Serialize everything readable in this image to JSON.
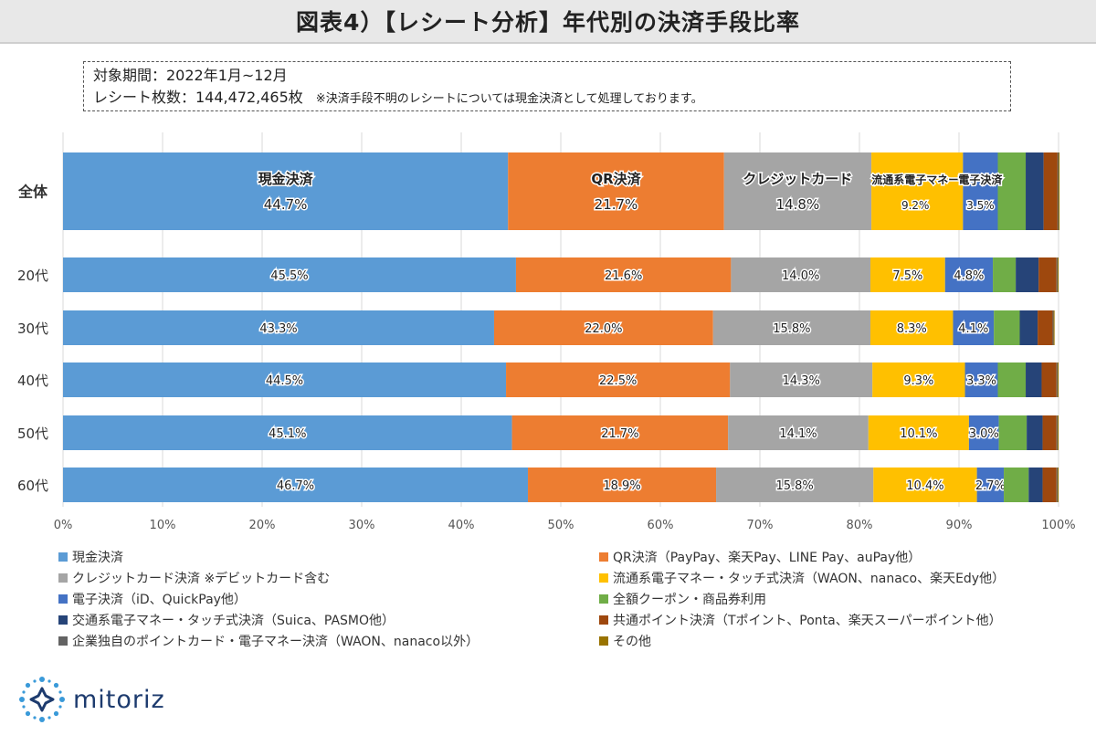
{
  "header": {
    "title": "図表4）【レシート分析】年代別の決済手段比率"
  },
  "info": {
    "period": "対象期間：2022年1月~12月",
    "receipts": "レシート枚数：144,472,465枚",
    "note": "※決済手段不明のレシートについては現金決済として処理しております。"
  },
  "logo": {
    "text": "mitoriz"
  },
  "colors": {
    "cash": "#5b9bd5",
    "qr": "#ed7d31",
    "credit": "#a5a5a5",
    "ryutsu": "#ffc000",
    "denshi": "#4472c4",
    "coupon": "#70ad47",
    "kotsu": "#264478",
    "kyotsu": "#9e480e",
    "kigyo": "#636363",
    "other": "#997300"
  },
  "chart_data": {
    "type": "bar",
    "orientation": "horizontal",
    "stacked": "percent",
    "categories": [
      "全体",
      "20代",
      "30代",
      "40代",
      "50代",
      "60代"
    ],
    "xlim": [
      0,
      100
    ],
    "x_ticks": [
      "0%",
      "10%",
      "20%",
      "30%",
      "40%",
      "50%",
      "60%",
      "70%",
      "80%",
      "90%",
      "100%"
    ],
    "grid": true,
    "legend_position": "bottom",
    "series": [
      {
        "name": "現金決済",
        "key": "cash",
        "values": [
          44.7,
          45.5,
          43.3,
          44.5,
          45.1,
          46.7
        ],
        "labels": [
          "44.7%",
          "45.5%",
          "43.3%",
          "44.5%",
          "45.1%",
          "46.7%"
        ]
      },
      {
        "name": "QR決済（PayPay、楽天Pay、LINE Pay、auPay他）",
        "key": "qr",
        "values": [
          21.7,
          21.6,
          22.0,
          22.5,
          21.7,
          18.9
        ],
        "labels": [
          "21.7%",
          "21.6%",
          "22.0%",
          "22.5%",
          "21.7%",
          "18.9%"
        ]
      },
      {
        "name": "クレジットカード決済 ※デビットカード含む",
        "key": "credit",
        "values": [
          14.8,
          14.0,
          15.8,
          14.3,
          14.1,
          15.8
        ],
        "labels": [
          "14.8%",
          "14.0%",
          "15.8%",
          "14.3%",
          "14.1%",
          "15.8%"
        ]
      },
      {
        "name": "流通系電子マネー・タッチ式決済（WAON、nanaco、楽天Edy他）",
        "key": "ryutsu",
        "values": [
          9.2,
          7.5,
          8.3,
          9.3,
          10.1,
          10.4
        ],
        "labels": [
          "9.2%",
          "7.5%",
          "8.3%",
          "9.3%",
          "10.1%",
          "10.4%"
        ]
      },
      {
        "name": "電子決済（iD、QuickPay他）",
        "key": "denshi",
        "values": [
          3.5,
          4.8,
          4.1,
          3.3,
          3.0,
          2.7
        ],
        "labels": [
          "3.5%",
          "4.8%",
          "4.1%",
          "3.3%",
          "3.0%",
          "2.7%"
        ]
      },
      {
        "name": "全額クーポン・商品券利用",
        "key": "coupon",
        "values": [
          2.8,
          2.3,
          2.6,
          2.8,
          2.8,
          2.5
        ]
      },
      {
        "name": "交通系電子マネー・タッチ式決済（Suica、PASMO他）",
        "key": "kotsu",
        "values": [
          1.8,
          2.3,
          1.8,
          1.6,
          1.6,
          1.4
        ]
      },
      {
        "name": "共通ポイント決済（Tポイント、Ponta、楽天スーパーポイント他）",
        "key": "kyotsu",
        "values": [
          1.4,
          1.8,
          1.5,
          1.5,
          1.4,
          1.4
        ]
      },
      {
        "name": "企業独自のポイントカード・電子マネー決済（WAON、nanaco以外）",
        "key": "kigyo",
        "values": [
          0.1,
          0.1,
          0.1,
          0.1,
          0.1,
          0.1
        ]
      },
      {
        "name": "その他",
        "key": "other",
        "values": [
          0.1,
          0.1,
          0.1,
          0.1,
          0.1,
          0.1
        ]
      }
    ],
    "overall_labels": [
      {
        "series": "cash",
        "name": "現金決済",
        "value": "44.7%"
      },
      {
        "series": "qr",
        "name": "QR決済",
        "value": "21.7%"
      },
      {
        "series": "credit",
        "name": "クレジットカード",
        "value": "14.8%"
      },
      {
        "series": "ryutsu",
        "name": "流通系電子マネー",
        "value": "9.2%"
      },
      {
        "series": "denshi",
        "name": "電子決済",
        "value": "3.5%"
      }
    ]
  }
}
